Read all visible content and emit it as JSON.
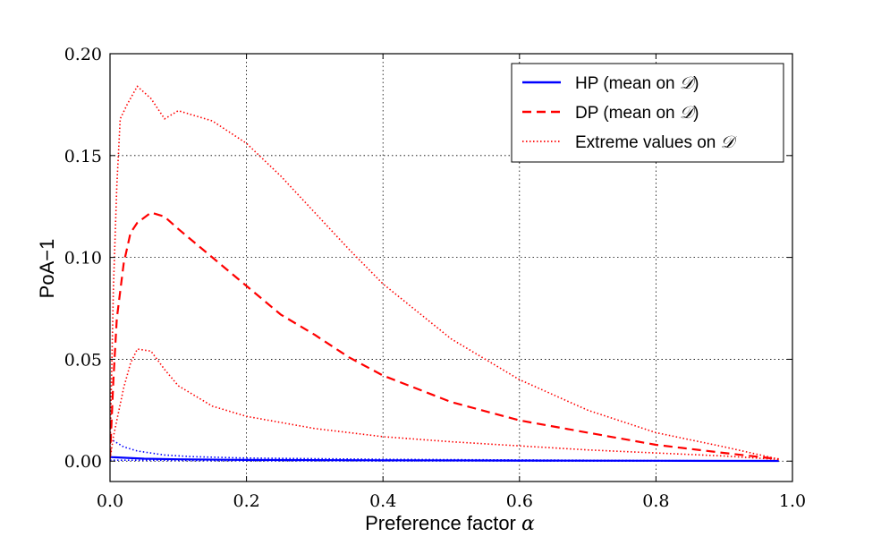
{
  "chart_data": {
    "type": "line",
    "title": "",
    "xlabel": "Preference factor",
    "xlabel_symbol": "α",
    "ylabel": "PoA−1",
    "xlim": [
      0.0,
      1.0
    ],
    "ylim": [
      -0.01,
      0.2
    ],
    "xticks": [
      0.0,
      0.2,
      0.4,
      0.6,
      0.8,
      1.0
    ],
    "xtick_labels": [
      "0.0",
      "0.2",
      "0.4",
      "0.6",
      "0.8",
      "1.0"
    ],
    "yticks": [
      0.0,
      0.05,
      0.1,
      0.15,
      0.2
    ],
    "ytick_labels": [
      "0.00",
      "0.05",
      "0.10",
      "0.15",
      "0.20"
    ],
    "grid": true,
    "legend_position": "top-right",
    "legend": [
      {
        "label": "HP (mean on ",
        "symbol": "𝒟",
        "suffix": ")",
        "style": "solid",
        "color": "#0000ff"
      },
      {
        "label": "DP (mean on ",
        "symbol": "𝒟",
        "suffix": ")",
        "style": "dashed",
        "color": "#ff0000"
      },
      {
        "label": "Extreme values on ",
        "symbol": "𝒟",
        "suffix": "",
        "style": "dotted",
        "color": "#ff0000"
      }
    ],
    "series": [
      {
        "id": "hp-mean",
        "color": "#0000ff",
        "style": "solid",
        "points": [
          [
            0.0,
            0.002
          ],
          [
            0.05,
            0.0012
          ],
          [
            0.1,
            0.0009
          ],
          [
            0.2,
            0.0006
          ],
          [
            0.4,
            0.0004
          ],
          [
            0.6,
            0.0003
          ],
          [
            0.8,
            0.0002
          ],
          [
            0.98,
            0.0001
          ]
        ]
      },
      {
        "id": "hp-extreme-upper",
        "color": "#0000ff",
        "style": "dotted",
        "points": [
          [
            0.0,
            0.011
          ],
          [
            0.02,
            0.007
          ],
          [
            0.04,
            0.005
          ],
          [
            0.08,
            0.003
          ],
          [
            0.12,
            0.0022
          ],
          [
            0.2,
            0.0015
          ],
          [
            0.4,
            0.0009
          ],
          [
            0.6,
            0.0006
          ],
          [
            0.8,
            0.0003
          ],
          [
            0.98,
            0.0001
          ]
        ]
      },
      {
        "id": "hp-extreme-lower",
        "color": "#0000ff",
        "style": "dotted",
        "points": [
          [
            0.0,
            0.0005
          ],
          [
            0.2,
            0.0002
          ],
          [
            0.6,
            0.0001
          ],
          [
            0.98,
            0.0
          ]
        ]
      },
      {
        "id": "dp-mean",
        "color": "#ff0000",
        "style": "dashed",
        "points": [
          [
            0.0,
            0.002
          ],
          [
            0.005,
            0.04
          ],
          [
            0.01,
            0.07
          ],
          [
            0.02,
            0.097
          ],
          [
            0.03,
            0.112
          ],
          [
            0.04,
            0.117
          ],
          [
            0.06,
            0.122
          ],
          [
            0.08,
            0.12
          ],
          [
            0.1,
            0.114
          ],
          [
            0.15,
            0.1
          ],
          [
            0.2,
            0.086
          ],
          [
            0.25,
            0.072
          ],
          [
            0.3,
            0.062
          ],
          [
            0.35,
            0.051
          ],
          [
            0.4,
            0.042
          ],
          [
            0.5,
            0.029
          ],
          [
            0.6,
            0.02
          ],
          [
            0.7,
            0.014
          ],
          [
            0.8,
            0.008
          ],
          [
            0.9,
            0.004
          ],
          [
            0.98,
            0.001
          ]
        ]
      },
      {
        "id": "dp-extreme-upper",
        "color": "#ff0000",
        "style": "dotted",
        "points": [
          [
            0.0,
            0.005
          ],
          [
            0.005,
            0.085
          ],
          [
            0.01,
            0.135
          ],
          [
            0.015,
            0.168
          ],
          [
            0.025,
            0.175
          ],
          [
            0.04,
            0.184
          ],
          [
            0.06,
            0.178
          ],
          [
            0.08,
            0.168
          ],
          [
            0.1,
            0.172
          ],
          [
            0.15,
            0.167
          ],
          [
            0.2,
            0.156
          ],
          [
            0.25,
            0.14
          ],
          [
            0.3,
            0.122
          ],
          [
            0.35,
            0.104
          ],
          [
            0.4,
            0.087
          ],
          [
            0.5,
            0.06
          ],
          [
            0.6,
            0.04
          ],
          [
            0.7,
            0.025
          ],
          [
            0.8,
            0.014
          ],
          [
            0.9,
            0.007
          ],
          [
            0.98,
            0.001
          ]
        ]
      },
      {
        "id": "dp-extreme-lower",
        "color": "#ff0000",
        "style": "dotted",
        "points": [
          [
            0.0,
            0.001
          ],
          [
            0.005,
            0.012
          ],
          [
            0.01,
            0.02
          ],
          [
            0.02,
            0.036
          ],
          [
            0.03,
            0.048
          ],
          [
            0.04,
            0.055
          ],
          [
            0.06,
            0.054
          ],
          [
            0.08,
            0.045
          ],
          [
            0.1,
            0.037
          ],
          [
            0.15,
            0.027
          ],
          [
            0.2,
            0.022
          ],
          [
            0.3,
            0.016
          ],
          [
            0.4,
            0.012
          ],
          [
            0.5,
            0.0095
          ],
          [
            0.6,
            0.0075
          ],
          [
            0.7,
            0.0055
          ],
          [
            0.8,
            0.004
          ],
          [
            0.9,
            0.0025
          ],
          [
            0.98,
            0.0008
          ]
        ]
      }
    ]
  }
}
